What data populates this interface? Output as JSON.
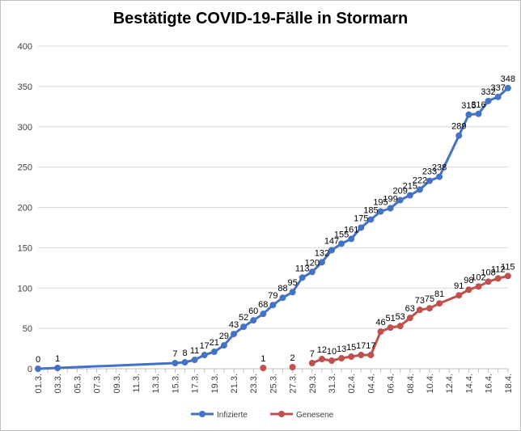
{
  "chart_data": {
    "type": "line",
    "title": "Bestätigte COVID-19-Fälle in Stormarn",
    "xlabel": "",
    "ylabel": "",
    "ylim": [
      0,
      400
    ],
    "yticks": [
      0,
      50,
      100,
      150,
      200,
      250,
      300,
      350,
      400
    ],
    "grid": "horizontal",
    "legend": "bottom",
    "xtick_labels": [
      "01.3.",
      "03.3.",
      "05.3.",
      "07.3.",
      "09.3.",
      "11.3.",
      "13.3.",
      "15.3.",
      "17.3.",
      "19.3.",
      "21.3.",
      "23.3.",
      "25.3.",
      "27.3.",
      "29.3.",
      "31.3.",
      "02.4.",
      "04.4.",
      "06.4.",
      "08.4.",
      "10.4.",
      "12.4.",
      "14.4.",
      "16.4.",
      "18.4."
    ],
    "series": [
      {
        "name": "Infizierte",
        "color": "#4472C4",
        "points": [
          [
            "01.3.",
            0
          ],
          [
            "03.3.",
            1
          ],
          [
            "15.3.",
            7
          ],
          [
            "16.3.",
            8
          ],
          [
            "17.3.",
            11
          ],
          [
            "18.3.",
            17
          ],
          [
            "19.3.",
            21
          ],
          [
            "20.3.",
            29
          ],
          [
            "21.3.",
            43
          ],
          [
            "22.3.",
            52
          ],
          [
            "23.3.",
            60
          ],
          [
            "24.3.",
            68
          ],
          [
            "25.3.",
            79
          ],
          [
            "26.3.",
            88
          ],
          [
            "27.3.",
            95
          ],
          [
            "28.3.",
            113
          ],
          [
            "29.3.",
            120
          ],
          [
            "30.3.",
            132
          ],
          [
            "31.3.",
            147
          ],
          [
            "01.4.",
            155
          ],
          [
            "02.4.",
            161
          ],
          [
            "03.4.",
            175
          ],
          [
            "04.4.",
            185
          ],
          [
            "05.4.",
            195
          ],
          [
            "06.4.",
            199
          ],
          [
            "07.4.",
            209
          ],
          [
            "08.4.",
            215
          ],
          [
            "09.4.",
            222
          ],
          [
            "10.4.",
            233
          ],
          [
            "11.4.",
            238
          ],
          [
            "13.4.",
            289
          ],
          [
            "14.4.",
            315
          ],
          [
            "15.4.",
            316
          ],
          [
            "16.4.",
            332
          ],
          [
            "17.4.",
            337
          ],
          [
            "18.4.",
            348
          ]
        ],
        "segments": [
          [
            0,
            35
          ]
        ]
      },
      {
        "name": "Genesene",
        "color": "#C0504D",
        "points": [
          [
            "24.3.",
            1
          ],
          [
            "27.3.",
            2
          ],
          [
            "29.3.",
            7
          ],
          [
            "30.3.",
            12
          ],
          [
            "31.3.",
            10
          ],
          [
            "01.4.",
            13
          ],
          [
            "02.4.",
            15
          ],
          [
            "03.4.",
            17
          ],
          [
            "04.4.",
            17
          ],
          [
            "05.4.",
            46
          ],
          [
            "06.4.",
            51
          ],
          [
            "07.4.",
            53
          ],
          [
            "08.4.",
            63
          ],
          [
            "09.4.",
            73
          ],
          [
            "10.4.",
            75
          ],
          [
            "11.4.",
            81
          ],
          [
            "13.4.",
            91
          ],
          [
            "14.4.",
            98
          ],
          [
            "15.4.",
            102
          ],
          [
            "16.4.",
            108
          ],
          [
            "17.4.",
            112
          ],
          [
            "18.4.",
            115
          ]
        ],
        "segments": [
          [
            0,
            0
          ],
          [
            1,
            1
          ],
          [
            2,
            21
          ]
        ]
      }
    ]
  }
}
